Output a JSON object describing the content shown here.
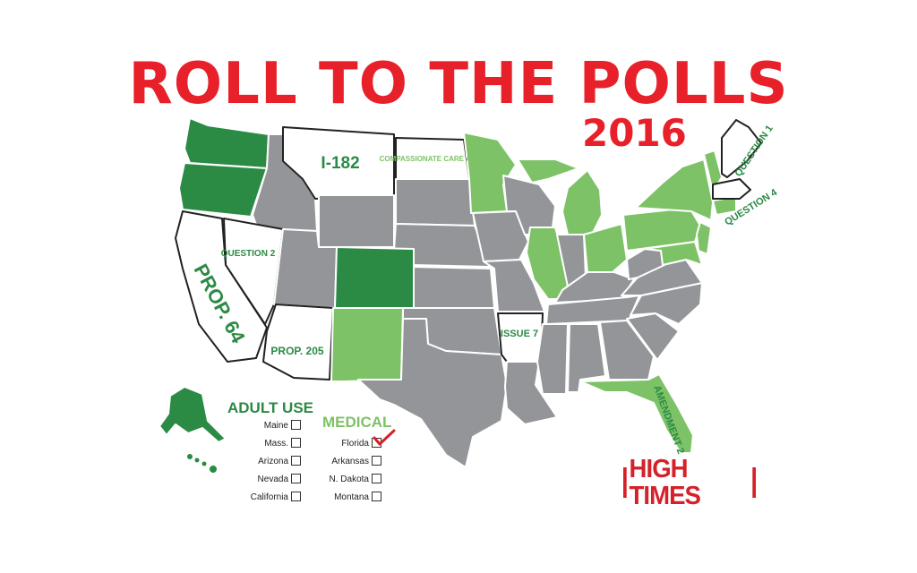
{
  "title": "ROLL TO THE POLLS",
  "year": "2016",
  "colors": {
    "title_red": "#e8202a",
    "adult_use_green": "#2b8a44",
    "medical_green": "#7dc266",
    "no_action_gray": "#939598",
    "ballot_white": "#ffffff"
  },
  "map_labels": {
    "wa_mt": "I-182",
    "nd": "COMPASSIONATE CARE ACT",
    "nv": "QUESTION 2",
    "ca": "PROP. 64",
    "az": "PROP. 205",
    "ar": "ISSUE 7",
    "fl": "AMENDMENT 2",
    "me": "QUESTION 1",
    "ma": "QUESTION 4"
  },
  "legend": {
    "adult_use_title": "ADULT USE",
    "adult_use_states": [
      "Maine",
      "Mass.",
      "Arizona",
      "Nevada",
      "California"
    ],
    "medical_title": "MEDICAL",
    "medical_states": [
      "Florida",
      "Arkansas",
      "N. Dakota",
      "Montana"
    ],
    "checked": "Florida",
    "check_icon": "check-mark-icon"
  },
  "brand": "HIGH TIMES"
}
